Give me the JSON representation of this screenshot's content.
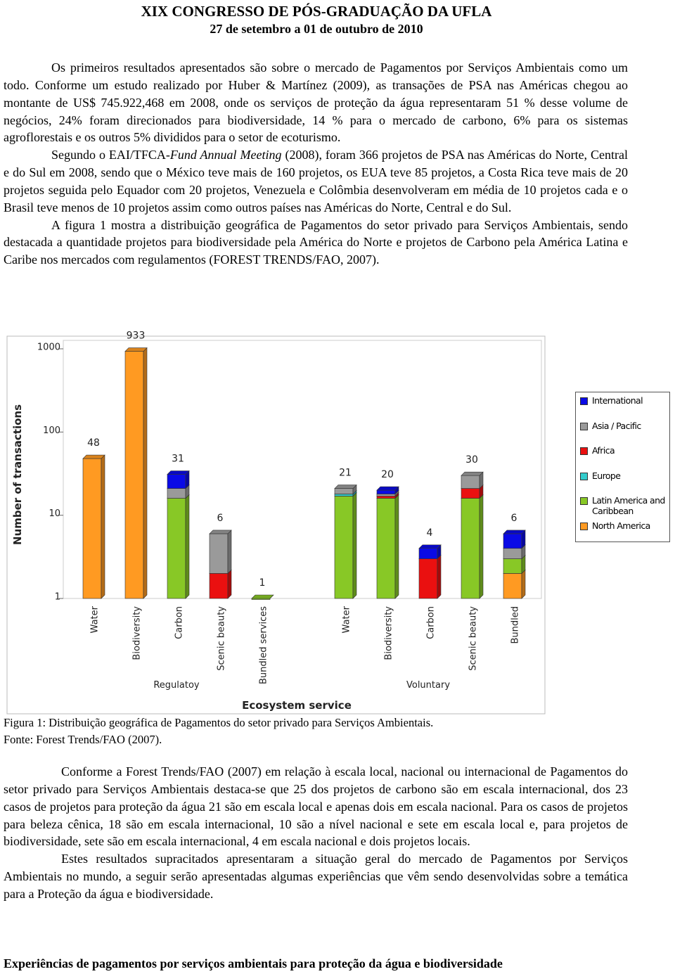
{
  "header": {
    "title": "XIX CONGRESSO DE PÓS-GRADUAÇÃO DA UFLA",
    "subtitle": "27 de setembro a 01 de outubro de 2010"
  },
  "body": [
    "Os primeiros resultados apresentados são sobre o mercado de Pagamentos por Serviços Ambientais como um todo. Conforme um estudo realizado por Huber & Martínez (2009), as transações de PSA nas Américas chegou ao montante de US$ 745.922,468 em 2008, onde os serviços de proteção da água representaram 51 % desse volume de negócios, 24% foram direcionados para biodiversidade, 14 % para o mercado de carbono, 6% para os sistemas agroflorestais e os outros 5% divididos para o setor de ecoturismo.",
    {
      "before": "Segundo o EAI/TFCA-",
      "italic": "Fund Annual Meeting",
      "after": " (2008), foram 366 projetos de PSA nas Américas do Norte, Central e do Sul em 2008, sendo que o México teve mais de 160 projetos, os EUA teve 85 projetos, a Costa Rica teve mais de 20 projetos seguida pelo Equador com 20 projetos, Venezuela e Colômbia desenvolveram em média de 10 projetos cada e o Brasil teve menos de 10 projetos assim como outros países nas Américas do Norte, Central e do Sul."
    },
    "A figura 1 mostra a distribuição geográfica de Pagamentos do setor privado para Serviços Ambientais, sendo destacada a quantidade projetos para biodiversidade pela América do Norte e projetos de Carbono pela América Latina e Caribe nos mercados com regulamentos (FOREST TRENDS/FAO, 2007)."
  ],
  "chart_data": {
    "type": "stacked-bar",
    "log_scale": true,
    "y_label": "Number of transactions",
    "x_label": "Ecosystem service",
    "groups": [
      {
        "label": "Regulatoy",
        "size": 5
      },
      {
        "label": "Voluntary",
        "size": 5
      }
    ],
    "categories": [
      "Water",
      "Biodiversity",
      "Carbon",
      "Scenic beauty",
      "Bundled services",
      "Water",
      "Biodiversity",
      "Carbon",
      "Scenic beauty",
      "Bundled"
    ],
    "totals": [
      48,
      933,
      31,
      6,
      1,
      21,
      20,
      4,
      30,
      6
    ],
    "ylim": [
      1,
      1000
    ],
    "yticks": [
      1,
      10,
      100,
      1000
    ],
    "series": [
      {
        "name": "International",
        "color": "#0a0ae6",
        "values": [
          null,
          null,
          10,
          null,
          null,
          null,
          2,
          1,
          null,
          2
        ]
      },
      {
        "name": "Asia / Pacific",
        "color": "#9a9a9a",
        "values": [
          null,
          null,
          5,
          4,
          null,
          3,
          1,
          null,
          9,
          1
        ]
      },
      {
        "name": "Africa",
        "color": "#ea1010",
        "values": [
          null,
          null,
          null,
          2,
          null,
          null,
          1,
          3,
          5,
          null
        ]
      },
      {
        "name": "Europe",
        "color": "#33cccc",
        "values": [
          null,
          null,
          null,
          null,
          null,
          1,
          null,
          null,
          null,
          null
        ]
      },
      {
        "name": "Latin America and Caribbean",
        "color": "#88c826",
        "values": [
          null,
          null,
          16,
          null,
          1,
          17,
          16,
          null,
          16,
          1
        ]
      },
      {
        "name": "North America",
        "color": "#ff9a22",
        "values": [
          48,
          933,
          null,
          null,
          null,
          null,
          null,
          null,
          null,
          2
        ]
      }
    ]
  },
  "caption": [
    "Figura 1: Distribuição geográfica de Pagamentos do setor privado para Serviços Ambientais.",
    "Fonte: Forest Trends/FAO (2007)."
  ],
  "body2": [
    "Conforme a Forest Trends/FAO (2007) em relação à escala local, nacional ou internacional de Pagamentos do setor privado para Serviços Ambientais destaca-se que 25 dos projetos de carbono são em escala internacional, dos 23 casos de projetos para proteção da água 21 são em escala local e apenas dois em escala nacional. Para os casos de projetos para beleza cênica, 18 são em escala internacional, 10 são a nível nacional e sete em escala local e, para projetos de biodiversidade, sete são em escala internacional, 4 em escala nacional e dois projetos locais.",
    "Estes resultados supracitados apresentaram a situação geral do mercado de Pagamentos por Serviços Ambientais no mundo, a seguir serão apresentadas algumas experiências que vêm sendo desenvolvidas sobre a temática para a Proteção da água e biodiversidade."
  ],
  "heading": "Experiências de pagamentos por serviços ambientais para proteção da água e biodiversidade"
}
